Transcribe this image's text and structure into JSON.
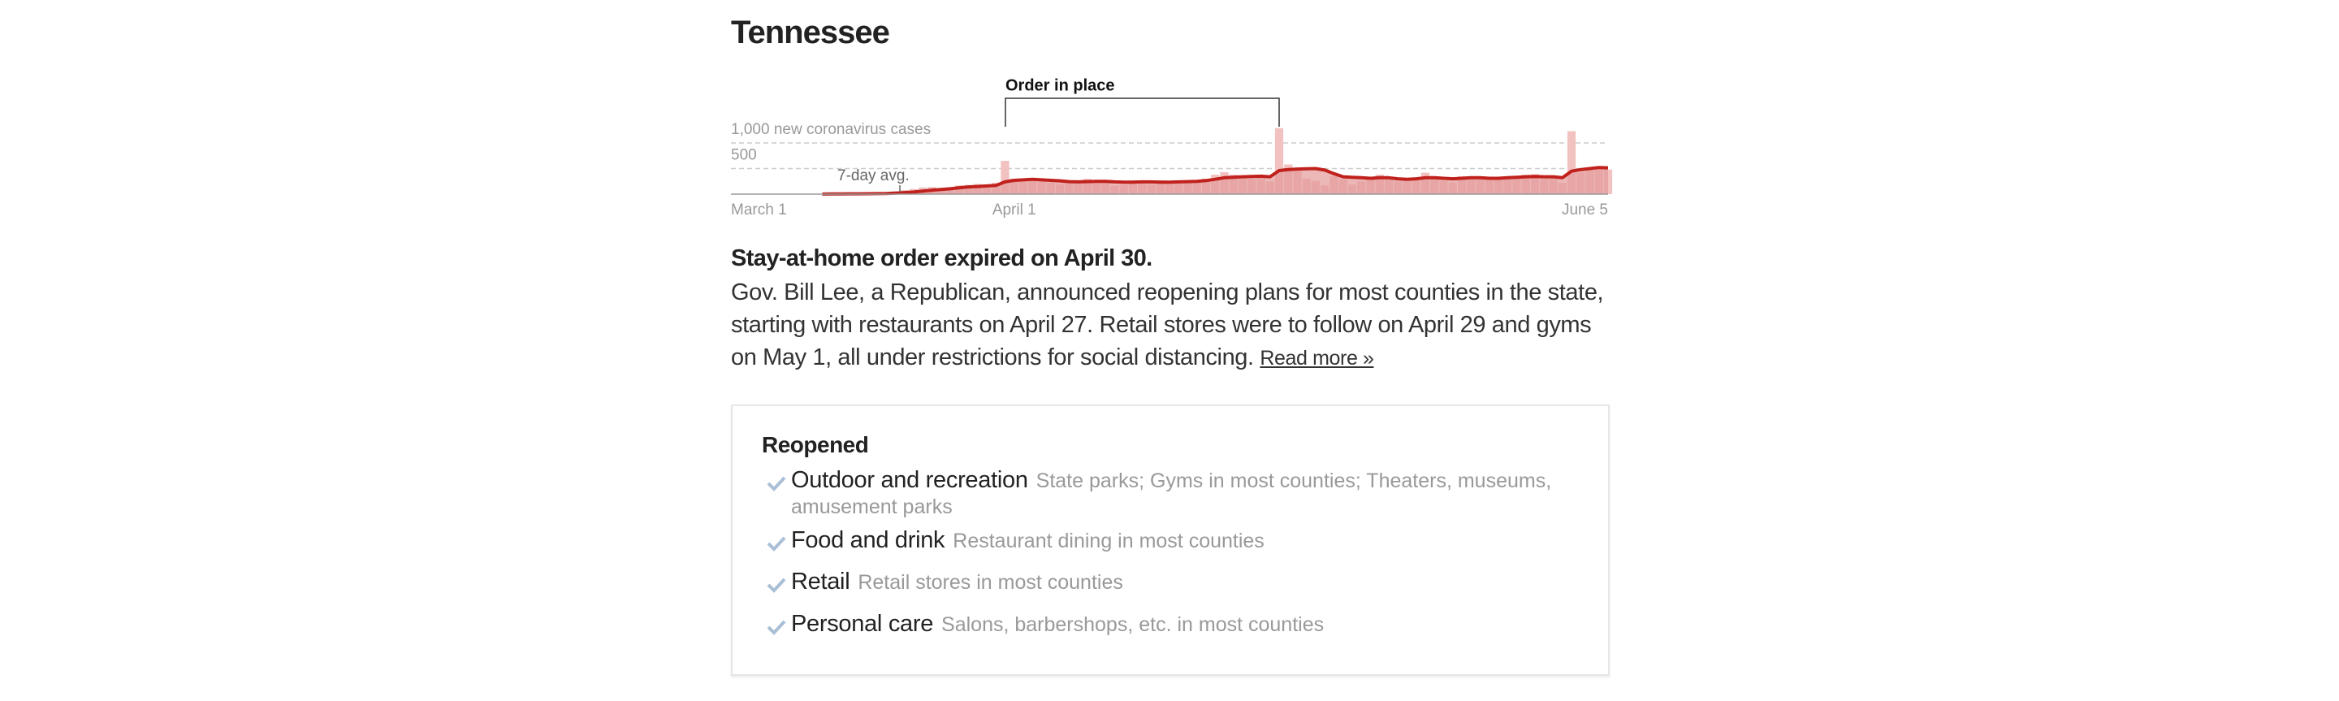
{
  "title": "Tennessee",
  "chart_data": {
    "type": "bar",
    "annotation": "Order in place",
    "categories": [
      "March 1",
      null,
      null,
      null,
      null,
      null,
      null,
      null,
      null,
      null,
      null,
      null,
      null,
      null,
      null,
      null,
      null,
      null,
      null,
      null,
      null,
      null,
      null,
      null,
      null,
      null,
      null,
      null,
      null,
      null,
      null,
      "April 1",
      null,
      null,
      null,
      null,
      null,
      null,
      null,
      null,
      null,
      null,
      null,
      null,
      null,
      null,
      null,
      null,
      null,
      null,
      null,
      null,
      null,
      null,
      null,
      null,
      null,
      null,
      null,
      null,
      null,
      null,
      null,
      null,
      null,
      null,
      null,
      null,
      null,
      null,
      null,
      null,
      null,
      null,
      null,
      null,
      null,
      null,
      null,
      null,
      null,
      null,
      null,
      null,
      null,
      null,
      null,
      null,
      null,
      null,
      null,
      null,
      null,
      null,
      null,
      null,
      "June 5"
    ],
    "values": [
      0,
      0,
      0,
      0,
      1,
      0,
      1,
      0,
      1,
      2,
      4,
      9,
      6,
      13,
      7,
      13,
      20,
      25,
      55,
      80,
      100,
      130,
      140,
      105,
      120,
      170,
      180,
      200,
      160,
      220,
      650,
      300,
      280,
      260,
      240,
      220,
      200,
      230,
      240,
      300,
      260,
      230,
      170,
      180,
      270,
      250,
      190,
      270,
      230,
      240,
      240,
      230,
      300,
      380,
      430,
      380,
      350,
      300,
      330,
      250,
      1290,
      580,
      490,
      300,
      260,
      170,
      350,
      290,
      190,
      250,
      320,
      380,
      310,
      250,
      270,
      290,
      420,
      330,
      260,
      230,
      350,
      300,
      320,
      280,
      320,
      350,
      330,
      380,
      390,
      300,
      330,
      220,
      1230,
      420,
      520,
      500,
      480
    ],
    "color": "#f2c2c1",
    "line": {
      "name": "7-day avg.",
      "color": "#c0211c",
      "values": [
        null,
        null,
        null,
        null,
        null,
        null,
        null,
        null,
        null,
        null,
        2,
        3,
        4,
        6,
        6,
        8,
        10,
        13,
        20,
        30,
        42,
        59,
        78,
        92,
        105,
        125,
        141,
        150,
        160,
        170,
        240,
        270,
        280,
        290,
        280,
        270,
        260,
        245,
        240,
        245,
        250,
        250,
        240,
        235,
        235,
        240,
        240,
        235,
        235,
        240,
        245,
        250,
        265,
        290,
        320,
        330,
        340,
        345,
        350,
        340,
        460,
        480,
        490,
        495,
        500,
        470,
        400,
        340,
        330,
        320,
        310,
        320,
        320,
        300,
        290,
        300,
        320,
        320,
        310,
        300,
        310,
        320,
        320,
        310,
        310,
        320,
        330,
        340,
        345,
        340,
        340,
        320,
        450,
        480,
        500,
        520,
        515
      ]
    },
    "ylim": [
      0,
      1500
    ],
    "yticks": [
      500,
      {
        "value": 1000,
        "label": "1,000 new coronavirus cases"
      }
    ],
    "grid": true
  },
  "status": {
    "headline": "Stay-at-home order expired on April 30.",
    "body": "Gov. Bill Lee, a Republican, announced reopening plans for most counties in the state, starting with restaurants on April 27. Retail stores were to follow on April 29 and gyms on May 1, all under restrictions for social distancing.",
    "link": "Read more »"
  },
  "reopened": {
    "title": "Reopened",
    "items": [
      {
        "category": "Outdoor and recreation",
        "detail": "State parks; Gyms in most counties; Theaters, museums, amusement parks"
      },
      {
        "category": "Food and drink",
        "detail": "Restaurant dining in most counties"
      },
      {
        "category": "Retail",
        "detail": "Retail stores in most counties"
      },
      {
        "category": "Personal care",
        "detail": "Salons, barbershops, etc. in most counties"
      }
    ]
  }
}
